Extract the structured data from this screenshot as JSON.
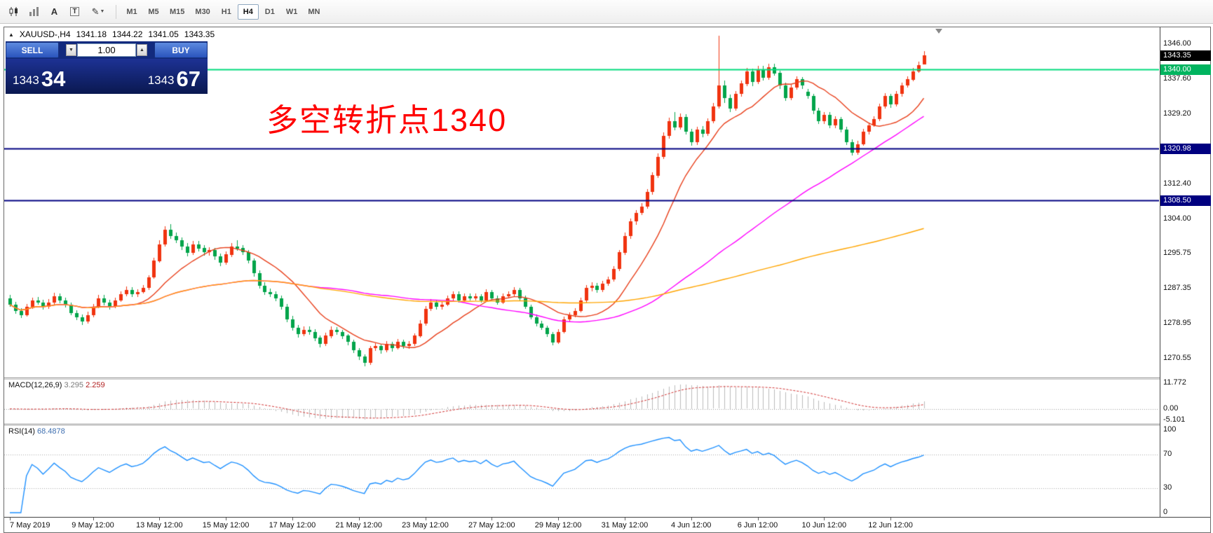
{
  "toolbar": {
    "tools": [
      {
        "id": "candlestick-chart"
      },
      {
        "id": "bar-chart"
      },
      {
        "id": "text-label",
        "glyph": "A"
      },
      {
        "id": "text-box",
        "glyph": "T"
      },
      {
        "id": "draw-tools",
        "glyph": "✎",
        "caret": "▼"
      }
    ],
    "timeframes": [
      "M1",
      "M5",
      "M15",
      "M30",
      "H1",
      "H4",
      "D1",
      "W1",
      "MN"
    ],
    "active_timeframe": "H4"
  },
  "chart": {
    "symbol_header": {
      "collapse_icon": "▲",
      "title": "XAUUSD-,H4",
      "open": "1341.18",
      "high": "1344.22",
      "low": "1341.05",
      "close": "1343.35"
    },
    "trade_panel": {
      "sell_label": "SELL",
      "buy_label": "BUY",
      "lot_value": "1.00",
      "lot_down_icon": "▼",
      "lot_up_icon": "▲",
      "bid": {
        "main": "1343",
        "pips": "34"
      },
      "ask": {
        "main": "1343",
        "pips": "67"
      }
    },
    "annotation": {
      "text": "多空转折点1340",
      "color": "#FF0000"
    }
  },
  "chart_data": {
    "type": "candlestick",
    "symbol": "XAUUSD-",
    "timeframe": "H4",
    "current_bar": {
      "open": 1341.18,
      "high": 1344.22,
      "low": 1341.05,
      "close": 1343.35
    },
    "price_range": [
      1266,
      1350
    ],
    "price_axis_ticks": [
      1346.0,
      1337.6,
      1329.2,
      1312.4,
      1304.0,
      1295.75,
      1287.35,
      1278.95,
      1270.55
    ],
    "colors": {
      "bull": "#F0330F",
      "bear": "#00A44A",
      "ma_fast": "#E8401C",
      "ma_mid": "#FF00FF",
      "ma_slow": "#FFA500",
      "macd_hist": "#BBBBBB",
      "macd_signal": "#D03030",
      "rsi": "#1E90FF"
    },
    "ma_overlays": [
      {
        "type": "sma",
        "period": 13,
        "color_key": "ma_fast"
      },
      {
        "type": "sma",
        "period": 55,
        "color_key": "ma_mid"
      },
      {
        "type": "sma",
        "period": 140,
        "color_key": "ma_slow"
      }
    ],
    "horizontal_lines": [
      {
        "price": 1340.0,
        "label": "1340.00",
        "line_color": "#00DC7D",
        "badge_color": "#00B45F"
      },
      {
        "price": 1320.98,
        "label": "1320.98",
        "line_color": "#000080",
        "badge_color": "#000080"
      },
      {
        "price": 1308.5,
        "label": "1308.50",
        "line_color": "#000080",
        "badge_color": "#000080"
      }
    ],
    "last_price": {
      "value": 1343.35,
      "label": "1343.35",
      "badge_color": "#000000"
    },
    "macd": {
      "label": "MACD(12,26,9)",
      "fast": 12,
      "slow": 26,
      "signal": 9,
      "macd_value": "3.295",
      "signal_value": "2.259",
      "range": [
        -6.8,
        13.4
      ],
      "axis_ticks": [
        {
          "v": 11.772,
          "label": "11.772"
        },
        {
          "v": 0,
          "label": "0.00"
        },
        {
          "v": -5.101,
          "label": "-5.101"
        }
      ]
    },
    "rsi": {
      "label": "RSI(14)",
      "period": 14,
      "value": "68.4878",
      "range": [
        0,
        100
      ],
      "levels": [
        70,
        30
      ],
      "axis_ticks": [
        {
          "v": 100,
          "label": "100"
        },
        {
          "v": 70,
          "label": "70"
        },
        {
          "v": 30,
          "label": "30"
        },
        {
          "v": 0,
          "label": "0"
        }
      ]
    },
    "time_labels": [
      {
        "i": 0,
        "t": "7 May 2019"
      },
      {
        "i": 15,
        "t": "9 May 12:00"
      },
      {
        "i": 27,
        "t": "13 May 12:00"
      },
      {
        "i": 39,
        "t": "15 May 12:00"
      },
      {
        "i": 51,
        "t": "17 May 12:00"
      },
      {
        "i": 63,
        "t": "21 May 12:00"
      },
      {
        "i": 75,
        "t": "23 May 12:00"
      },
      {
        "i": 87,
        "t": "27 May 12:00"
      },
      {
        "i": 99,
        "t": "29 May 12:00"
      },
      {
        "i": 111,
        "t": "31 May 12:00"
      },
      {
        "i": 123,
        "t": "4 Jun 12:00"
      },
      {
        "i": 135,
        "t": "6 Jun 12:00"
      },
      {
        "i": 147,
        "t": "10 Jun 12:00"
      },
      {
        "i": 159,
        "t": "12 Jun 12:00"
      }
    ],
    "ohlc": [
      [
        1285.0,
        1285.8,
        1283.0,
        1283.5
      ],
      [
        1283.5,
        1284.2,
        1281.3,
        1282.0
      ],
      [
        1282.0,
        1282.6,
        1280.2,
        1281.0
      ],
      [
        1281.0,
        1283.6,
        1280.6,
        1283.0
      ],
      [
        1283.0,
        1285.2,
        1282.5,
        1284.5
      ],
      [
        1284.5,
        1285.3,
        1283.4,
        1284.0
      ],
      [
        1284.0,
        1284.6,
        1282.2,
        1283.0
      ],
      [
        1283.0,
        1284.8,
        1282.4,
        1284.0
      ],
      [
        1284.0,
        1286.3,
        1283.5,
        1285.5
      ],
      [
        1285.5,
        1286.2,
        1283.8,
        1284.5
      ],
      [
        1284.5,
        1285.2,
        1282.8,
        1283.5
      ],
      [
        1283.5,
        1284.0,
        1280.9,
        1281.5
      ],
      [
        1281.5,
        1282.2,
        1279.8,
        1280.5
      ],
      [
        1280.5,
        1281.1,
        1278.6,
        1279.5
      ],
      [
        1279.5,
        1281.8,
        1279.0,
        1281.0
      ],
      [
        1281.0,
        1283.7,
        1280.5,
        1283.0
      ],
      [
        1283.0,
        1285.8,
        1282.6,
        1285.0
      ],
      [
        1285.0,
        1285.9,
        1283.3,
        1284.0
      ],
      [
        1284.0,
        1284.7,
        1282.3,
        1283.0
      ],
      [
        1283.0,
        1285.1,
        1282.6,
        1284.5
      ],
      [
        1284.5,
        1286.6,
        1284.0,
        1286.0
      ],
      [
        1286.0,
        1287.8,
        1285.4,
        1287.0
      ],
      [
        1287.0,
        1287.6,
        1285.2,
        1286.0
      ],
      [
        1286.0,
        1287.2,
        1285.3,
        1286.5
      ],
      [
        1286.5,
        1288.1,
        1286.0,
        1287.5
      ],
      [
        1287.5,
        1290.6,
        1287.0,
        1290.0
      ],
      [
        1290.0,
        1294.7,
        1289.6,
        1294.0
      ],
      [
        1294.0,
        1298.9,
        1293.5,
        1298.0
      ],
      [
        1298.0,
        1302.3,
        1297.4,
        1301.5
      ],
      [
        1301.5,
        1302.8,
        1299.3,
        1300.0
      ],
      [
        1300.0,
        1300.7,
        1298.2,
        1299.0
      ],
      [
        1299.0,
        1299.6,
        1296.6,
        1297.5
      ],
      [
        1297.5,
        1298.3,
        1295.1,
        1296.0
      ],
      [
        1296.0,
        1298.8,
        1295.5,
        1298.0
      ],
      [
        1298.0,
        1298.7,
        1296.2,
        1297.0
      ],
      [
        1297.0,
        1297.8,
        1295.2,
        1296.0
      ],
      [
        1296.0,
        1297.3,
        1295.2,
        1296.5
      ],
      [
        1296.5,
        1297.1,
        1294.3,
        1295.0
      ],
      [
        1295.0,
        1295.8,
        1292.8,
        1293.5
      ],
      [
        1293.5,
        1296.2,
        1293.0,
        1295.5
      ],
      [
        1295.5,
        1298.3,
        1295.0,
        1297.5
      ],
      [
        1297.5,
        1298.9,
        1296.3,
        1297.0
      ],
      [
        1297.0,
        1297.7,
        1295.3,
        1296.0
      ],
      [
        1296.0,
        1296.6,
        1293.4,
        1294.0
      ],
      [
        1294.0,
        1294.6,
        1290.3,
        1291.0
      ],
      [
        1291.0,
        1291.7,
        1287.4,
        1288.0
      ],
      [
        1288.0,
        1288.8,
        1285.8,
        1286.5
      ],
      [
        1286.5,
        1287.3,
        1285.2,
        1286.0
      ],
      [
        1286.0,
        1286.6,
        1284.3,
        1285.0
      ],
      [
        1285.0,
        1285.6,
        1282.3,
        1283.0
      ],
      [
        1283.0,
        1283.6,
        1279.3,
        1280.0
      ],
      [
        1280.0,
        1280.7,
        1277.2,
        1278.0
      ],
      [
        1278.0,
        1278.6,
        1275.6,
        1276.5
      ],
      [
        1276.5,
        1278.3,
        1275.9,
        1277.5
      ],
      [
        1277.5,
        1278.2,
        1276.2,
        1277.0
      ],
      [
        1277.0,
        1277.6,
        1274.7,
        1275.5
      ],
      [
        1275.5,
        1276.1,
        1273.2,
        1274.0
      ],
      [
        1274.0,
        1276.7,
        1273.5,
        1276.0
      ],
      [
        1276.0,
        1278.2,
        1275.4,
        1277.5
      ],
      [
        1277.5,
        1278.1,
        1276.2,
        1277.0
      ],
      [
        1277.0,
        1277.5,
        1275.3,
        1276.0
      ],
      [
        1276.0,
        1276.5,
        1273.8,
        1274.5
      ],
      [
        1274.5,
        1275.0,
        1271.8,
        1272.5
      ],
      [
        1272.5,
        1273.1,
        1270.3,
        1271.0
      ],
      [
        1271.0,
        1271.6,
        1268.8,
        1269.5
      ],
      [
        1269.5,
        1273.6,
        1269.1,
        1273.0
      ],
      [
        1273.0,
        1274.2,
        1272.4,
        1273.5
      ],
      [
        1273.5,
        1274.0,
        1271.7,
        1272.5
      ],
      [
        1272.5,
        1274.7,
        1272.0,
        1274.0
      ],
      [
        1274.0,
        1274.6,
        1272.2,
        1273.0
      ],
      [
        1273.0,
        1275.2,
        1272.6,
        1274.5
      ],
      [
        1274.5,
        1275.1,
        1272.9,
        1273.5
      ],
      [
        1273.5,
        1274.7,
        1272.8,
        1274.0
      ],
      [
        1274.0,
        1276.6,
        1273.5,
        1276.0
      ],
      [
        1276.0,
        1279.7,
        1275.5,
        1279.0
      ],
      [
        1279.0,
        1283.2,
        1278.5,
        1282.5
      ],
      [
        1282.5,
        1284.8,
        1282.0,
        1284.0
      ],
      [
        1284.0,
        1284.7,
        1282.3,
        1283.0
      ],
      [
        1283.0,
        1284.2,
        1282.4,
        1283.5
      ],
      [
        1283.5,
        1285.6,
        1283.0,
        1285.0
      ],
      [
        1285.0,
        1286.7,
        1284.4,
        1286.0
      ],
      [
        1286.0,
        1286.6,
        1283.9,
        1284.5
      ],
      [
        1284.5,
        1286.1,
        1284.0,
        1285.5
      ],
      [
        1285.5,
        1286.2,
        1284.6,
        1285.0
      ],
      [
        1285.0,
        1286.1,
        1284.5,
        1285.5
      ],
      [
        1285.5,
        1286.0,
        1283.9,
        1284.5
      ],
      [
        1284.5,
        1287.1,
        1284.0,
        1286.5
      ],
      [
        1286.5,
        1287.0,
        1284.4,
        1285.0
      ],
      [
        1285.0,
        1285.6,
        1283.4,
        1284.0
      ],
      [
        1284.0,
        1286.1,
        1283.6,
        1285.5
      ],
      [
        1285.5,
        1286.6,
        1284.9,
        1286.0
      ],
      [
        1286.0,
        1287.7,
        1285.5,
        1287.0
      ],
      [
        1287.0,
        1287.5,
        1284.4,
        1285.0
      ],
      [
        1285.0,
        1285.6,
        1282.4,
        1283.0
      ],
      [
        1283.0,
        1283.5,
        1279.9,
        1280.5
      ],
      [
        1280.5,
        1281.2,
        1278.4,
        1279.0
      ],
      [
        1279.0,
        1279.6,
        1277.4,
        1278.0
      ],
      [
        1278.0,
        1278.5,
        1275.8,
        1276.5
      ],
      [
        1276.5,
        1277.0,
        1273.8,
        1274.5
      ],
      [
        1274.5,
        1277.6,
        1274.0,
        1277.0
      ],
      [
        1277.0,
        1280.6,
        1276.6,
        1280.0
      ],
      [
        1280.0,
        1281.7,
        1279.3,
        1281.0
      ],
      [
        1281.0,
        1282.6,
        1280.4,
        1282.0
      ],
      [
        1282.0,
        1285.1,
        1281.6,
        1284.5
      ],
      [
        1284.5,
        1288.2,
        1284.0,
        1287.5
      ],
      [
        1287.5,
        1288.8,
        1286.6,
        1288.0
      ],
      [
        1288.0,
        1288.6,
        1286.2,
        1287.0
      ],
      [
        1287.0,
        1289.2,
        1286.5,
        1288.5
      ],
      [
        1288.5,
        1290.2,
        1288.0,
        1289.5
      ],
      [
        1289.5,
        1292.7,
        1289.0,
        1292.0
      ],
      [
        1292.0,
        1296.6,
        1291.5,
        1296.0
      ],
      [
        1296.0,
        1300.8,
        1295.5,
        1300.0
      ],
      [
        1300.0,
        1304.2,
        1299.4,
        1303.5
      ],
      [
        1303.5,
        1306.2,
        1302.6,
        1305.5
      ],
      [
        1305.5,
        1307.8,
        1304.9,
        1307.0
      ],
      [
        1307.0,
        1311.2,
        1306.5,
        1310.5
      ],
      [
        1310.5,
        1315.3,
        1310.0,
        1314.5
      ],
      [
        1314.5,
        1319.8,
        1314.0,
        1319.0
      ],
      [
        1319.0,
        1324.8,
        1318.4,
        1324.0
      ],
      [
        1324.0,
        1328.3,
        1323.2,
        1327.5
      ],
      [
        1327.5,
        1329.6,
        1325.3,
        1326.0
      ],
      [
        1326.0,
        1329.3,
        1325.4,
        1328.5
      ],
      [
        1328.5,
        1329.1,
        1324.2,
        1325.0
      ],
      [
        1325.0,
        1325.7,
        1321.6,
        1322.5
      ],
      [
        1322.5,
        1326.2,
        1321.9,
        1325.5
      ],
      [
        1325.5,
        1326.3,
        1323.6,
        1324.5
      ],
      [
        1324.5,
        1328.2,
        1324.0,
        1327.5
      ],
      [
        1327.5,
        1331.8,
        1327.0,
        1331.0
      ],
      [
        1331.0,
        1347.9,
        1330.4,
        1336.0
      ],
      [
        1336.0,
        1337.2,
        1331.8,
        1333.0
      ],
      [
        1333.0,
        1333.8,
        1329.6,
        1330.5
      ],
      [
        1330.5,
        1334.7,
        1330.0,
        1334.0
      ],
      [
        1334.0,
        1337.2,
        1333.4,
        1336.5
      ],
      [
        1336.5,
        1340.3,
        1336.0,
        1339.5
      ],
      [
        1339.5,
        1340.1,
        1335.9,
        1337.0
      ],
      [
        1337.0,
        1340.8,
        1336.4,
        1340.0
      ],
      [
        1340.0,
        1340.7,
        1337.2,
        1338.0
      ],
      [
        1338.0,
        1341.3,
        1337.5,
        1340.5
      ],
      [
        1340.5,
        1341.2,
        1338.3,
        1339.0
      ],
      [
        1339.0,
        1339.6,
        1335.2,
        1336.0
      ],
      [
        1336.0,
        1336.7,
        1332.3,
        1333.0
      ],
      [
        1333.0,
        1336.2,
        1332.5,
        1335.5
      ],
      [
        1335.5,
        1338.2,
        1335.0,
        1337.5
      ],
      [
        1337.5,
        1338.1,
        1335.3,
        1336.0
      ],
      [
        1334.5,
        1335.2,
        1332.8,
        1333.5
      ],
      [
        1333.5,
        1334.1,
        1329.3,
        1330.0
      ],
      [
        1330.0,
        1330.6,
        1326.8,
        1327.5
      ],
      [
        1327.5,
        1329.7,
        1326.9,
        1329.0
      ],
      [
        1329.0,
        1329.6,
        1325.8,
        1326.5
      ],
      [
        1326.5,
        1328.7,
        1325.9,
        1328.0
      ],
      [
        1328.0,
        1328.5,
        1324.8,
        1325.5
      ],
      [
        1325.5,
        1326.1,
        1321.8,
        1322.5
      ],
      [
        1322.5,
        1323.1,
        1319.2,
        1320.0
      ],
      [
        1320.0,
        1322.7,
        1319.4,
        1322.0
      ],
      [
        1322.0,
        1325.6,
        1321.5,
        1325.0
      ],
      [
        1325.0,
        1327.2,
        1324.4,
        1326.5
      ],
      [
        1326.5,
        1328.6,
        1326.0,
        1328.0
      ],
      [
        1328.0,
        1331.7,
        1327.5,
        1331.0
      ],
      [
        1331.0,
        1334.2,
        1330.5,
        1333.5
      ],
      [
        1333.5,
        1334.1,
        1330.8,
        1331.5
      ],
      [
        1331.5,
        1334.7,
        1331.0,
        1334.0
      ],
      [
        1334.0,
        1336.7,
        1333.4,
        1336.0
      ],
      [
        1336.0,
        1338.2,
        1335.5,
        1337.5
      ],
      [
        1337.5,
        1340.2,
        1337.0,
        1339.5
      ],
      [
        1339.5,
        1341.7,
        1339.0,
        1341.0
      ],
      [
        1341.18,
        1344.22,
        1341.05,
        1343.35
      ]
    ]
  }
}
